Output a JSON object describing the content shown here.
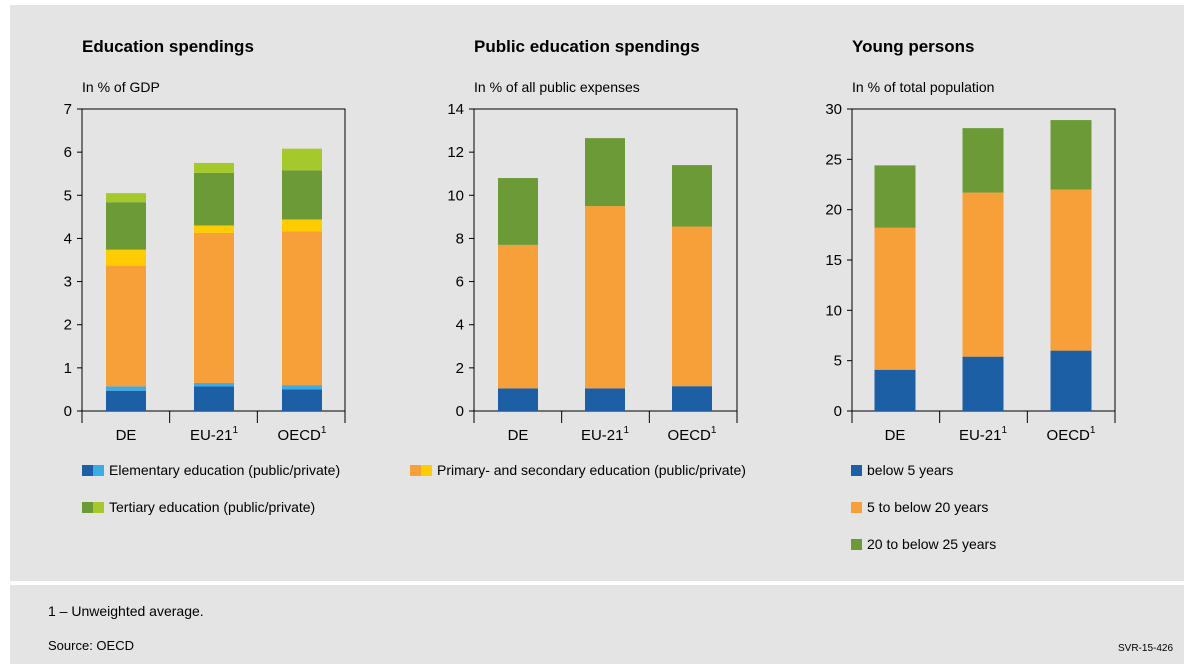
{
  "colors": {
    "dark_blue": "#1c5fa4",
    "light_blue": "#3dabe8",
    "orange": "#f7a03a",
    "yellow": "#fecc00",
    "dark_green": "#6b9a37",
    "light_green": "#a5c82b"
  },
  "chart_data": [
    {
      "type": "bar",
      "stacked": true,
      "title": "Education spendings",
      "ylabel": "In % of GDP",
      "categories": [
        "DE",
        "EU-21",
        "OECD"
      ],
      "category_sup": [
        "",
        "1",
        "1"
      ],
      "ylim": [
        0,
        7
      ],
      "yticks": [
        "0",
        "1",
        "2",
        "3",
        "4",
        "5",
        "6",
        "7"
      ],
      "grid": false,
      "series": [
        {
          "name": "Elementary education (public/private)",
          "part": "public",
          "color": "#1c5fa4",
          "values": [
            0.47,
            0.57,
            0.5
          ]
        },
        {
          "name": "Elementary education (public/private)",
          "part": "private",
          "color": "#3dabe8",
          "values": [
            0.1,
            0.08,
            0.1
          ]
        },
        {
          "name": "Primary- and secondary education (public/private)",
          "part": "public",
          "color": "#f7a03a",
          "values": [
            2.8,
            3.48,
            3.56
          ]
        },
        {
          "name": "Primary- and secondary education (public/private)",
          "part": "private",
          "color": "#fecc00",
          "values": [
            0.37,
            0.17,
            0.28
          ]
        },
        {
          "name": "Tertiary education (public/private)",
          "part": "public",
          "color": "#6b9a37",
          "values": [
            1.1,
            1.22,
            1.14
          ]
        },
        {
          "name": "Tertiary education (public/private)",
          "part": "private",
          "color": "#a5c82b",
          "values": [
            0.21,
            0.23,
            0.5
          ]
        }
      ]
    },
    {
      "type": "bar",
      "stacked": true,
      "title": "Public education spendings",
      "ylabel": "In % of all public expenses",
      "categories": [
        "DE",
        "EU-21",
        "OECD"
      ],
      "category_sup": [
        "",
        "1",
        "1"
      ],
      "ylim": [
        0,
        14
      ],
      "yticks": [
        "0",
        "2",
        "4",
        "6",
        "8",
        "10",
        "12",
        "14"
      ],
      "grid": false,
      "series": [
        {
          "name": "Elementary education",
          "color": "#1c5fa4",
          "values": [
            1.05,
            1.05,
            1.15
          ]
        },
        {
          "name": "Primary- and secondary education",
          "color": "#f7a03a",
          "values": [
            6.65,
            8.45,
            7.4
          ]
        },
        {
          "name": "Tertiary education",
          "color": "#6b9a37",
          "values": [
            3.1,
            3.15,
            2.85
          ]
        }
      ]
    },
    {
      "type": "bar",
      "stacked": true,
      "title": "Young persons",
      "ylabel": "In % of total population",
      "categories": [
        "DE",
        "EU-21",
        "OECD"
      ],
      "category_sup": [
        "",
        "1",
        "1"
      ],
      "ylim": [
        0,
        30
      ],
      "yticks": [
        "0",
        "5",
        "10",
        "15",
        "20",
        "25",
        "30"
      ],
      "grid": false,
      "series": [
        {
          "name": "below 5 years",
          "color": "#1c5fa4",
          "values": [
            4.1,
            5.4,
            6.0
          ]
        },
        {
          "name": "5 to below 20 years",
          "color": "#f7a03a",
          "values": [
            14.1,
            16.3,
            16.0
          ]
        },
        {
          "name": "20 to below 25 years",
          "color": "#6b9a37",
          "values": [
            6.2,
            6.4,
            6.9
          ]
        }
      ]
    }
  ],
  "legend_left": [
    {
      "label": "Elementary education (public/private)",
      "colors": [
        "#1c5fa4",
        "#3dabe8"
      ]
    },
    {
      "label": "Primary- and secondary education (public/private)",
      "colors": [
        "#f7a03a",
        "#fecc00"
      ]
    },
    {
      "label": "Tertiary education (public/private)",
      "colors": [
        "#6b9a37",
        "#a5c82b"
      ]
    }
  ],
  "legend_right": [
    {
      "label": "below 5 years",
      "color": "#1c5fa4"
    },
    {
      "label": "5 to below 20 years",
      "color": "#f7a03a"
    },
    {
      "label": "20 to below 25 years",
      "color": "#6b9a37"
    }
  ],
  "footnote": "1 – Unweighted average.",
  "source": "Source: OECD",
  "code": "SVR-15-426"
}
